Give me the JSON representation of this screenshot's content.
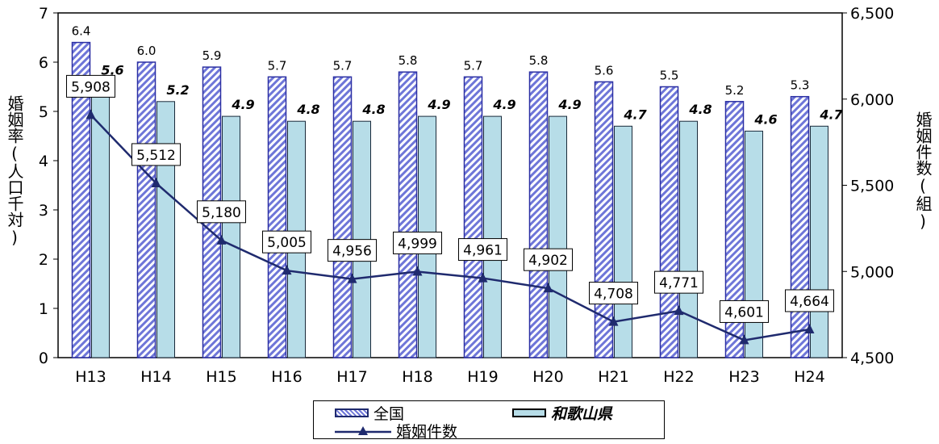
{
  "left_axis_title": "婚姻率(人口千対)",
  "right_axis_title": "婚姻件数(組)",
  "legend": {
    "national": "全国",
    "wakayama": "和歌山県",
    "marriages": "婚姻件数"
  },
  "colors": {
    "national_stroke": "#2b2fa3",
    "national_hatch_a": "#ffffff",
    "national_hatch_b": "#6e76d8",
    "wakayama_fill": "#b7dde8",
    "wakayama_stroke": "#1a2a3a",
    "line": "#1f2a6e"
  },
  "chart_data": {
    "type": "bar",
    "categories": [
      "H13",
      "H14",
      "H15",
      "H16",
      "H17",
      "H18",
      "H19",
      "H20",
      "H21",
      "H22",
      "H23",
      "H24"
    ],
    "series": [
      {
        "name": "全国",
        "axis": "left",
        "values": [
          6.4,
          6.0,
          5.9,
          5.7,
          5.7,
          5.8,
          5.7,
          5.8,
          5.6,
          5.5,
          5.2,
          5.3
        ],
        "labels": [
          "6.4",
          "6.0",
          "5.9",
          "5.7",
          "5.7",
          "5.8",
          "5.7",
          "5.8",
          "5.6",
          "5.5",
          "5.2",
          "5.3"
        ]
      },
      {
        "name": "和歌山県",
        "axis": "left",
        "values": [
          5.6,
          5.2,
          4.9,
          4.8,
          4.8,
          4.9,
          4.9,
          4.9,
          4.7,
          4.8,
          4.6,
          4.7
        ],
        "labels": [
          "5.6",
          "5.2",
          "4.9",
          "4.8",
          "4.8",
          "4.9",
          "4.9",
          "4.9",
          "4.7",
          "4.8",
          "4.6",
          "4.7"
        ]
      },
      {
        "name": "婚姻件数",
        "type": "line",
        "axis": "right",
        "values": [
          5908,
          5512,
          5180,
          5005,
          4956,
          4999,
          4961,
          4902,
          4708,
          4771,
          4601,
          4664
        ],
        "labels": [
          "5,908",
          "5,512",
          "5,180",
          "5,005",
          "4,956",
          "4,999",
          "4,961",
          "4,902",
          "4,708",
          "4,771",
          "4,601",
          "4,664"
        ]
      }
    ],
    "left_axis": {
      "ylim": [
        0,
        7
      ],
      "ticks": [
        "0",
        "1",
        "2",
        "3",
        "4",
        "5",
        "6",
        "7"
      ]
    },
    "right_axis": {
      "ylim": [
        4500,
        6500
      ],
      "ticks": [
        "4,500",
        "5,000",
        "5,500",
        "6,000",
        "6,500"
      ]
    },
    "grid": false,
    "legend_position": "bottom"
  }
}
